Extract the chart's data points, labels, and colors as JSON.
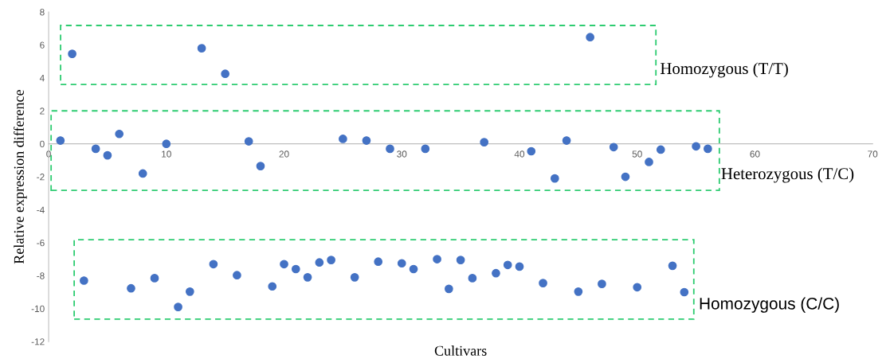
{
  "chart_data": {
    "type": "scatter",
    "xlabel": "Cultivars",
    "ylabel": "Relative expression difference",
    "x": [
      1,
      2,
      3,
      4,
      5,
      6,
      7,
      8,
      9,
      10,
      11,
      12,
      13,
      14,
      15,
      16,
      17,
      18,
      19,
      20,
      21,
      22,
      23,
      24,
      25,
      26,
      27,
      28,
      29,
      30,
      31,
      32,
      33,
      34,
      35,
      36,
      37,
      38,
      39,
      40,
      41,
      42,
      43,
      44,
      45,
      46,
      47,
      48,
      49,
      50,
      51,
      52,
      53,
      54,
      55,
      56
    ],
    "series": [
      {
        "color": "#4472c4",
        "values": [
          0.2,
          5.46,
          -8.3,
          -0.3,
          -0.7,
          0.6,
          -8.77,
          -1.8,
          -8.15,
          0,
          -9.9,
          -8.97,
          5.8,
          -7.3,
          4.25,
          -7.97,
          0.15,
          -1.35,
          -8.65,
          -7.3,
          -7.6,
          -8.1,
          -7.2,
          -7.05,
          0.3,
          -8.1,
          0.2,
          -7.15,
          -0.3,
          -7.25,
          -7.6,
          -0.3,
          -7.0,
          -8.8,
          -7.05,
          -8.15,
          0.1,
          -7.85,
          -7.35,
          -7.45,
          -0.45,
          -8.45,
          -2.1,
          0.2,
          -8.97,
          6.47,
          -8.5,
          -0.2,
          -2.0,
          -8.7,
          -1.1,
          -0.35,
          -7.4,
          -9.0,
          -0.15,
          -0.3
        ]
      }
    ],
    "xlim": [
      0,
      70
    ],
    "xticks": [
      0,
      10,
      20,
      30,
      40,
      50,
      60,
      70
    ],
    "ylim": [
      -12,
      8
    ],
    "yticks": [
      -12,
      -10,
      -8,
      -6,
      -4,
      -2,
      0,
      2,
      4,
      6,
      8
    ],
    "marker": "circle",
    "grid": false,
    "annotations": [
      "Homozygous (T/T)",
      "Heterozygous (T/C)",
      "Homozygous (C/C)"
    ]
  }
}
